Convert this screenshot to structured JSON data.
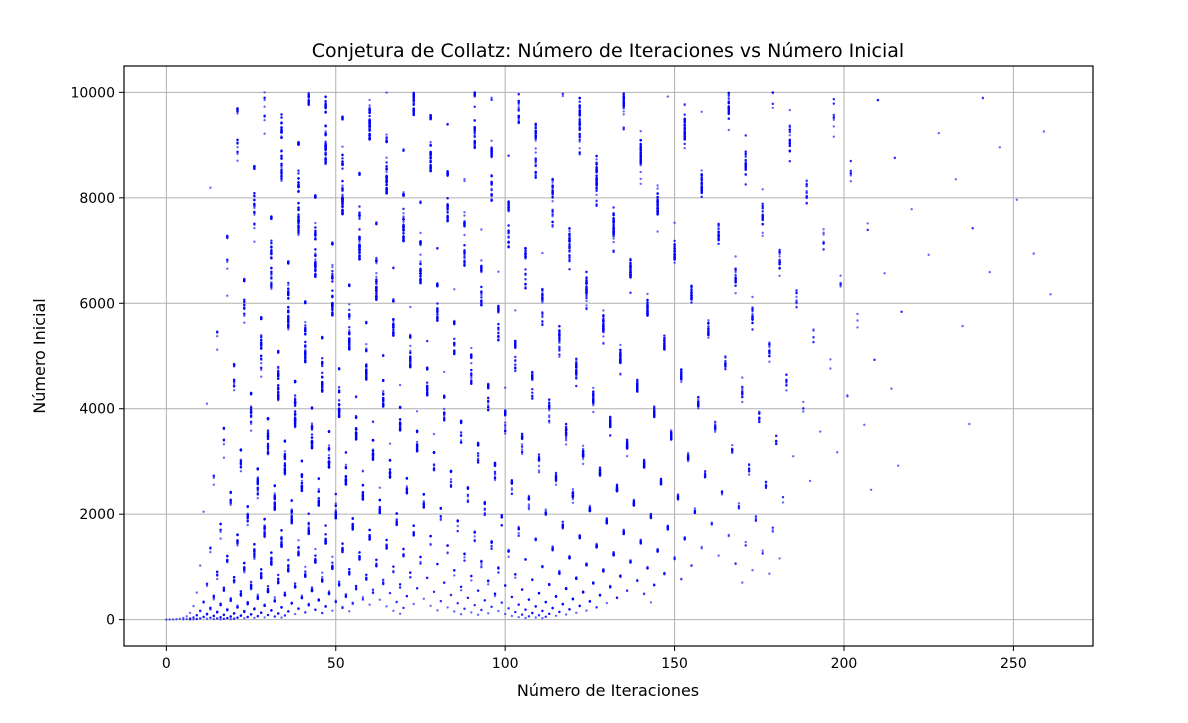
{
  "chart_data": {
    "type": "scatter",
    "title": "Conjetura de Collatz: Número de Iteraciones vs Número Inicial",
    "xlabel": "Número de Iteraciones",
    "ylabel": "Número Inicial",
    "xlim": [
      -12.5,
      273.5
    ],
    "ylim": [
      -500,
      10500
    ],
    "xticks": [
      0,
      50,
      100,
      150,
      200,
      250
    ],
    "yticks": [
      0,
      2000,
      4000,
      6000,
      8000,
      10000
    ],
    "grid": true,
    "point_color": "#0000ff",
    "point_opacity": 0.6,
    "series": [
      {
        "description": "steps to reach 1 under the Collatz map for starting values 1..10000",
        "n_start": 1,
        "n_end": 10000
      }
    ]
  }
}
